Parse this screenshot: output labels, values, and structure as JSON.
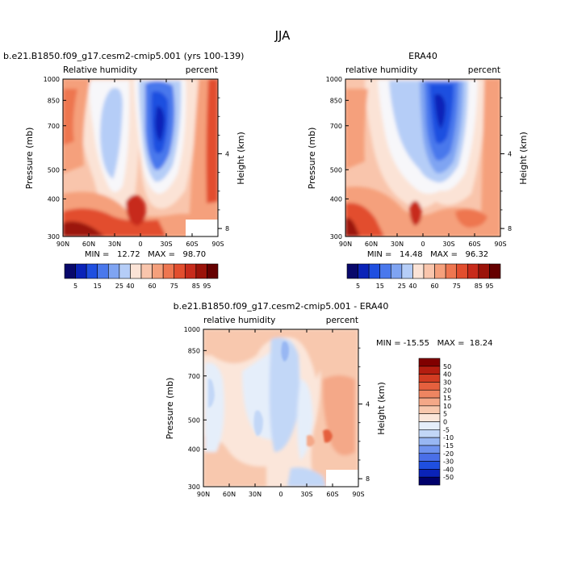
{
  "figure": {
    "title": "JJA"
  },
  "colors": {
    "abs_scale": [
      "#08086b",
      "#0a23b8",
      "#1f4fe0",
      "#4a78ec",
      "#7fa4f2",
      "#b5cdf7",
      "#fbe3d6",
      "#f9c5ac",
      "#f5a07c",
      "#ee7650",
      "#e24e2e",
      "#c72b1b",
      "#9b1309",
      "#650000"
    ],
    "diff_scale": [
      "#00006b",
      "#0a23b8",
      "#1f4fe0",
      "#4a6fe8",
      "#6f93ef",
      "#98b7f3",
      "#c2d7f7",
      "#e5eefa",
      "#fbe6da",
      "#f8c8ae",
      "#f4a888",
      "#ee8561",
      "#e5603e",
      "#d23c22",
      "#b41d10",
      "#800000"
    ]
  },
  "chart_data": [
    {
      "type": "heatmap",
      "panel": "model",
      "title": "b.e21.B1850.f09_g17.cesm2-cmip5.001 (yrs 100-139)",
      "subtitle_left": "Relative humidity",
      "subtitle_right": "percent",
      "ylabel": "Pressure (mb)",
      "y2label": "Height (km)",
      "x_ticks": [
        "90N",
        "60N",
        "30N",
        "0",
        "30S",
        "60S",
        "90S"
      ],
      "y_ticks": [
        "300",
        "400",
        "500",
        "700",
        "850",
        "1000"
      ],
      "y2_ticks": [
        "8",
        "4"
      ],
      "xlim": [
        90,
        -90
      ],
      "ylim": [
        1000,
        300
      ],
      "stats": "MIN =   12.72   MAX =   98.70",
      "min": 12.72,
      "max": 98.7,
      "colorbar_labels": [
        "5",
        "15",
        "25",
        "40",
        "60",
        "75",
        "85",
        "95"
      ],
      "contour_levels": [
        5,
        10,
        15,
        20,
        25,
        30,
        40,
        50,
        60,
        70,
        75,
        80,
        85,
        90,
        95
      ]
    },
    {
      "type": "heatmap",
      "panel": "obs",
      "title": "ERA40",
      "subtitle_left": "relative humidity",
      "subtitle_right": "percent",
      "ylabel": "Pressure (mb)",
      "y2label": "Height (km)",
      "x_ticks": [
        "90N",
        "60N",
        "30N",
        "0",
        "30S",
        "60S",
        "90S"
      ],
      "y_ticks": [
        "300",
        "400",
        "500",
        "700",
        "850",
        "1000"
      ],
      "y2_ticks": [
        "8",
        "4"
      ],
      "xlim": [
        90,
        -90
      ],
      "ylim": [
        1000,
        300
      ],
      "stats": "MIN =   14.48   MAX =   96.32",
      "min": 14.48,
      "max": 96.32,
      "colorbar_labels": [
        "5",
        "15",
        "25",
        "40",
        "60",
        "75",
        "85",
        "95"
      ],
      "contour_levels": [
        5,
        10,
        15,
        20,
        25,
        30,
        40,
        50,
        60,
        70,
        75,
        80,
        85,
        90,
        95
      ]
    },
    {
      "type": "heatmap",
      "panel": "diff",
      "title": "b.e21.B1850.f09_g17.cesm2-cmip5.001 - ERA40",
      "subtitle_left": "relative humidity",
      "subtitle_right": "percent",
      "ylabel": "Pressure (mb)",
      "y2label": "Height (km)",
      "x_ticks": [
        "90N",
        "60N",
        "30N",
        "0",
        "30S",
        "60S",
        "90S"
      ],
      "y_ticks": [
        "300",
        "400",
        "500",
        "700",
        "850",
        "1000"
      ],
      "y2_ticks": [
        "8",
        "4"
      ],
      "xlim": [
        90,
        -90
      ],
      "ylim": [
        1000,
        300
      ],
      "stats": "MIN = -15.55   MAX =  18.24",
      "min": -15.55,
      "max": 18.24,
      "colorbar_labels": [
        "50",
        "40",
        "30",
        "20",
        "15",
        "10",
        "5",
        "0",
        "-5",
        "-10",
        "-15",
        "-20",
        "-30",
        "-40",
        "-50"
      ],
      "contour_levels": [
        -50,
        -40,
        -30,
        -20,
        -15,
        -10,
        -5,
        0,
        5,
        10,
        15,
        20,
        30,
        40,
        50
      ]
    }
  ]
}
